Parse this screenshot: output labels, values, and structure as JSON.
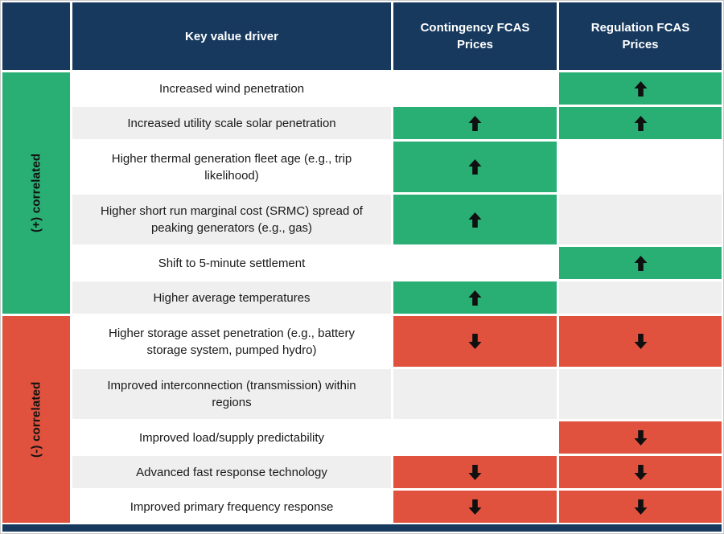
{
  "chart_data": {
    "type": "table",
    "columns": [
      "Key value driver",
      "Contingency FCAS Prices",
      "Regulation FCAS Prices"
    ],
    "icons": {
      "up-arrow": "↑",
      "down-arrow": "↓"
    },
    "groups": [
      {
        "label": "(+) correlated",
        "correlation": "positive",
        "color": "#29AF74",
        "rows": [
          {
            "driver": "Increased wind penetration",
            "contingency": "",
            "regulation": "up-arrow"
          },
          {
            "driver": "Increased utility scale solar penetration",
            "contingency": "up-arrow",
            "regulation": "up-arrow"
          },
          {
            "driver": "Higher thermal generation fleet age (e.g., trip likelihood)",
            "contingency": "up-arrow",
            "regulation": ""
          },
          {
            "driver": "Higher short run marginal cost (SRMC) spread of peaking generators (e.g., gas)",
            "contingency": "up-arrow",
            "regulation": ""
          },
          {
            "driver": "Shift to 5-minute settlement",
            "contingency": "",
            "regulation": "up-arrow"
          },
          {
            "driver": "Higher average temperatures",
            "contingency": "up-arrow",
            "regulation": ""
          }
        ]
      },
      {
        "label": "(-) correlated",
        "correlation": "negative",
        "color": "#E0523E",
        "rows": [
          {
            "driver": "Higher storage asset penetration (e.g., battery storage system, pumped hydro)",
            "contingency": "down-arrow",
            "regulation": "down-arrow"
          },
          {
            "driver": "Improved interconnection (transmission) within regions",
            "contingency": "",
            "regulation": ""
          },
          {
            "driver": "Improved load/supply predictability",
            "contingency": "",
            "regulation": "down-arrow"
          },
          {
            "driver": "Advanced fast response technology",
            "contingency": "down-arrow",
            "regulation": "down-arrow"
          },
          {
            "driver": "Improved primary frequency response",
            "contingency": "down-arrow",
            "regulation": "down-arrow"
          }
        ]
      }
    ],
    "colors": {
      "header_bg": "#17395E",
      "positive": "#29AF74",
      "negative": "#E0523E",
      "row_alt": "#EFEFEF",
      "row_default": "#FFFFFF",
      "arrow": "#101010"
    }
  }
}
